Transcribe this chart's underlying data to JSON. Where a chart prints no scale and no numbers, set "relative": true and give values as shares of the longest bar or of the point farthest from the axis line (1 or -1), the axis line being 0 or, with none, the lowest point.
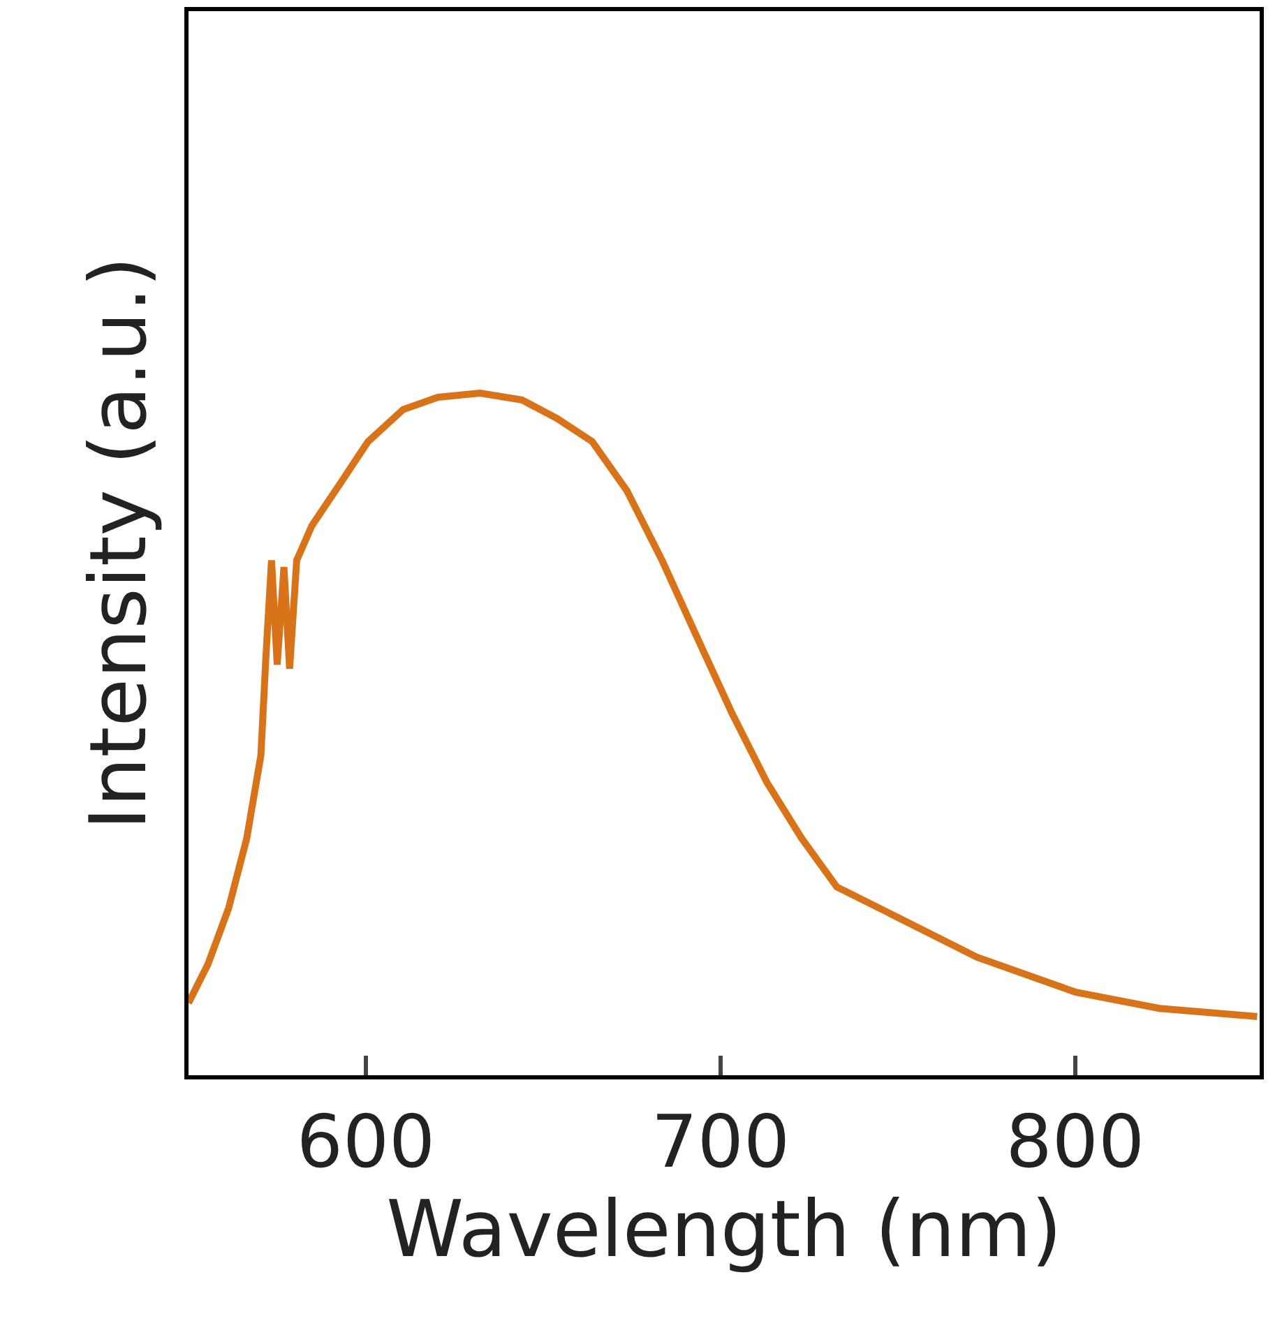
{
  "chart_data": {
    "type": "line",
    "relative": true,
    "xlabel": "Wavelength (nm)",
    "ylabel": "Intensity (a.u.)",
    "xlim": [
      550,
      852
    ],
    "xticks": [
      600,
      700,
      800
    ],
    "marker": "none",
    "line_style": "solid",
    "series": [
      {
        "color": "#d9731a",
        "x": [
          550,
          555.5,
          561.3,
          566.4,
          570.4,
          571.8,
          573.4,
          575,
          576.9,
          578.5,
          580.5,
          584.8,
          592.7,
          600.6,
          610.5,
          620.3,
          632.2,
          644,
          653.9,
          663.8,
          673.6,
          683.5,
          693.3,
          703.2,
          713.1,
          722.9,
          732.8,
          748.6,
          772.3,
          800,
          823.7,
          851.3
        ],
        "values": [
          0.106,
          0.163,
          0.245,
          0.347,
          0.469,
          0.612,
          0.755,
          0.602,
          0.745,
          0.596,
          0.755,
          0.806,
          0.867,
          0.929,
          0.976,
          0.994,
          1.0,
          0.99,
          0.963,
          0.929,
          0.857,
          0.755,
          0.643,
          0.531,
          0.429,
          0.347,
          0.276,
          0.235,
          0.173,
          0.122,
          0.098,
          0.086
        ]
      }
    ]
  }
}
